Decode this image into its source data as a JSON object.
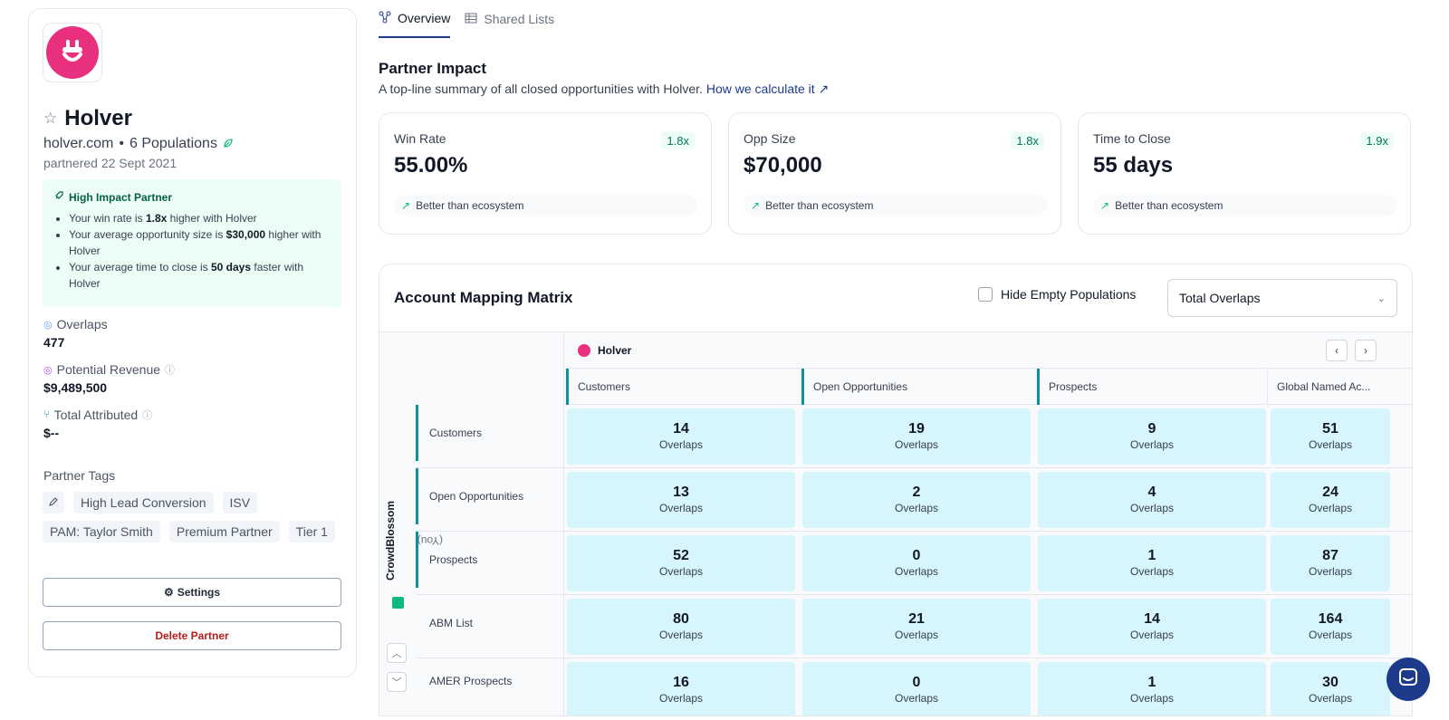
{
  "partner": {
    "name": "Holver",
    "domain": "holver.com",
    "populations": "6 Populations",
    "partnered": "partnered 22 Sept 2021",
    "brand_color": "#e8307f"
  },
  "impact_box": {
    "title": "High Impact Partner",
    "line1_pre": "Your win rate is ",
    "line1_bold": "1.8x",
    "line1_post": " higher with Holver",
    "line2_pre": "Your average opportunity size is ",
    "line2_bold": "$30,000",
    "line2_post": " higher with Holver",
    "line3_pre": "Your average time to close is ",
    "line3_bold": "50 days",
    "line3_post": " faster with Holver"
  },
  "metrics": {
    "overlaps_label": "Overlaps",
    "overlaps_value": "477",
    "revenue_label": "Potential Revenue",
    "revenue_value": "$9,489,500",
    "attributed_label": "Total Attributed",
    "attributed_value": "$--"
  },
  "tags": {
    "title": "Partner Tags",
    "items": [
      "High Lead Conversion",
      "ISV",
      "PAM: Taylor Smith",
      "Premium Partner",
      "Tier 1"
    ]
  },
  "buttons": {
    "settings": "Settings",
    "delete": "Delete Partner"
  },
  "tabs": {
    "overview": "Overview",
    "shared_lists": "Shared Lists"
  },
  "impact": {
    "title": "Partner Impact",
    "subtitle": "A top-line summary of all closed opportunities with Holver.",
    "link": "How we calculate it ↗",
    "cards": [
      {
        "label": "Win Rate",
        "value": "55.00%",
        "multiplier": "1.8x",
        "note": "Better than ecosystem"
      },
      {
        "label": "Opp Size",
        "value": "$70,000",
        "multiplier": "1.8x",
        "note": "Better than ecosystem"
      },
      {
        "label": "Time to Close",
        "value": "55 days",
        "multiplier": "1.9x",
        "note": "Better than ecosystem"
      }
    ]
  },
  "matrix": {
    "title": "Account Mapping Matrix",
    "hide_empty": "Hide Empty Populations",
    "select_value": "Total Overlaps",
    "partner_header": "Holver",
    "you_label": "CrowdBlossom",
    "you_suffix": "(You)",
    "cell_unit": "Overlaps",
    "columns": [
      "Customers",
      "Open Opportunities",
      "Prospects",
      "Global Named Ac..."
    ],
    "rows": [
      {
        "label": "Customers",
        "values": [
          "14",
          "19",
          "9",
          "51"
        ]
      },
      {
        "label": "Open Opportunities",
        "values": [
          "13",
          "2",
          "4",
          "24"
        ]
      },
      {
        "label": "Prospects",
        "values": [
          "52",
          "0",
          "1",
          "87"
        ]
      },
      {
        "label": "ABM List",
        "values": [
          "80",
          "21",
          "14",
          "164"
        ]
      },
      {
        "label": "AMER Prospects",
        "values": [
          "16",
          "0",
          "1",
          "30"
        ]
      }
    ]
  }
}
